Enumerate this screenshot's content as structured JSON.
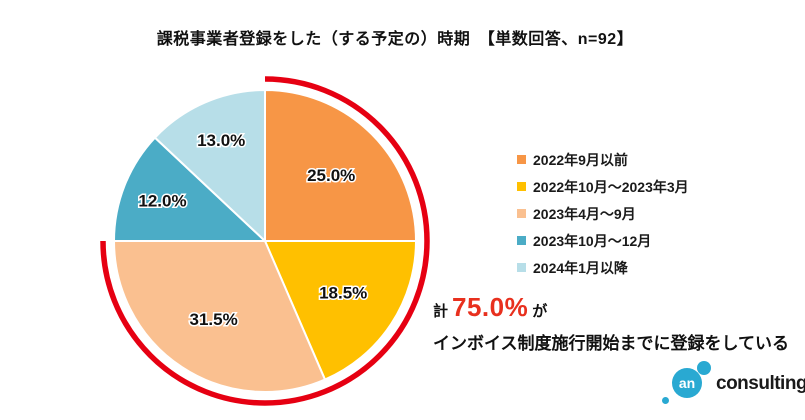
{
  "title": "課税事業者登録をした（する予定の）時期　【単数回答、n=92】",
  "chart_data": {
    "type": "pie",
    "title": "課税事業者登録をした（する予定の）時期",
    "subtitle": "【単数回答、n=92】",
    "n": 92,
    "unit": "%",
    "start_angle": "top",
    "direction": "clockwise",
    "legend_position": "right",
    "slices": [
      {
        "label": "2022年9月以前",
        "value": 25.0,
        "color": "#F79646"
      },
      {
        "label": "2022年10月～2023年3月",
        "value": 18.5,
        "color": "#FFC000"
      },
      {
        "label": "2023年4月～9月",
        "value": 31.5,
        "color": "#FAC090"
      },
      {
        "label": "2023年10月～12月",
        "value": 12.0,
        "color": "#4BACC6"
      },
      {
        "label": "2024年1月以降",
        "value": 13.0,
        "color": "#B7DEE8"
      }
    ],
    "highlight_arc": {
      "start_percent": 0,
      "end_percent": 75,
      "color": "#E60012"
    }
  },
  "annotation": {
    "prefix": "計",
    "percent": "75.0%",
    "suffix": "が",
    "line2": "インボイス制度施行開始までに登録をしている",
    "accent_color": "#E8301E"
  },
  "logo": {
    "mark_text": "an",
    "name": "consulting",
    "brand_color": "#29A9D2"
  }
}
